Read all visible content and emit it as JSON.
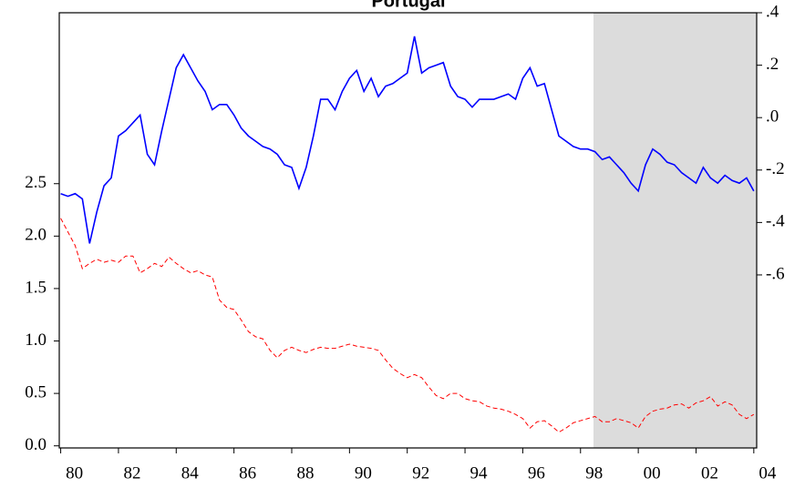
{
  "chart_data": {
    "type": "line",
    "title": "Portugal",
    "x": [
      1980,
      1980.25,
      1980.5,
      1980.75,
      1981,
      1981.25,
      1981.5,
      1981.75,
      1982,
      1982.25,
      1982.5,
      1982.75,
      1983,
      1983.25,
      1983.5,
      1983.75,
      1984,
      1984.25,
      1984.5,
      1984.75,
      1985,
      1985.25,
      1985.5,
      1985.75,
      1986,
      1986.25,
      1986.5,
      1986.75,
      1987,
      1987.25,
      1987.5,
      1987.75,
      1988,
      1988.25,
      1988.5,
      1988.75,
      1989,
      1989.25,
      1989.5,
      1989.75,
      1990,
      1990.25,
      1990.5,
      1990.75,
      1991,
      1991.25,
      1991.5,
      1991.75,
      1992,
      1992.25,
      1992.5,
      1992.75,
      1993,
      1993.25,
      1993.5,
      1993.75,
      1994,
      1994.25,
      1994.5,
      1994.75,
      1995,
      1995.25,
      1995.5,
      1995.75,
      1996,
      1996.25,
      1996.5,
      1996.75,
      1997,
      1997.25,
      1997.5,
      1997.75,
      1998,
      1998.25,
      1998.5,
      1998.75,
      1999,
      1999.25,
      1999.5,
      1999.75,
      2000,
      2000.25,
      2000.5,
      2000.75,
      2001,
      2001.25,
      2001.5,
      2001.75,
      2002,
      2002.25,
      2002.5,
      2002.75,
      2003,
      2003.25,
      2003.5,
      2003.75,
      2004
    ],
    "series": [
      {
        "color": "#0000ff",
        "axis": "y2",
        "line_style": "solid",
        "values": [
          -0.29,
          -0.3,
          -0.29,
          -0.31,
          -0.48,
          -0.36,
          -0.26,
          -0.23,
          -0.07,
          -0.05,
          -0.02,
          0.01,
          -0.14,
          -0.18,
          -0.05,
          0.07,
          0.19,
          0.24,
          0.19,
          0.14,
          0.1,
          0.03,
          0.05,
          0.05,
          0.01,
          -0.04,
          -0.07,
          -0.09,
          -0.11,
          -0.12,
          -0.14,
          -0.18,
          -0.19,
          -0.27,
          -0.19,
          -0.07,
          0.07,
          0.07,
          0.03,
          0.1,
          0.15,
          0.18,
          0.1,
          0.15,
          0.08,
          0.12,
          0.13,
          0.15,
          0.17,
          0.31,
          0.17,
          0.19,
          0.2,
          0.21,
          0.12,
          0.08,
          0.07,
          0.04,
          0.07,
          0.07,
          0.07,
          0.08,
          0.09,
          0.07,
          0.15,
          0.19,
          0.12,
          0.13,
          0.03,
          -0.07,
          -0.09,
          -0.11,
          -0.12,
          -0.12,
          -0.13,
          -0.16,
          -0.15,
          -0.18,
          -0.21,
          -0.25,
          -0.28,
          -0.18,
          -0.12,
          -0.14,
          -0.17,
          -0.18,
          -0.21,
          -0.23,
          -0.25,
          -0.19,
          -0.23,
          -0.25,
          -0.22,
          -0.24,
          -0.25,
          -0.23,
          -0.28
        ]
      },
      {
        "color": "#ff0000",
        "axis": "y",
        "line_style": "dashed",
        "values": [
          2.17,
          2.04,
          1.91,
          1.69,
          1.74,
          1.78,
          1.75,
          1.77,
          1.75,
          1.81,
          1.81,
          1.65,
          1.69,
          1.74,
          1.71,
          1.8,
          1.74,
          1.69,
          1.65,
          1.67,
          1.63,
          1.61,
          1.39,
          1.32,
          1.3,
          1.2,
          1.09,
          1.04,
          1.02,
          0.91,
          0.84,
          0.91,
          0.94,
          0.91,
          0.89,
          0.92,
          0.94,
          0.93,
          0.93,
          0.95,
          0.97,
          0.95,
          0.94,
          0.93,
          0.91,
          0.82,
          0.74,
          0.69,
          0.65,
          0.68,
          0.65,
          0.56,
          0.48,
          0.45,
          0.5,
          0.5,
          0.45,
          0.43,
          0.42,
          0.38,
          0.36,
          0.35,
          0.33,
          0.3,
          0.26,
          0.17,
          0.23,
          0.24,
          0.19,
          0.13,
          0.17,
          0.22,
          0.24,
          0.26,
          0.28,
          0.23,
          0.23,
          0.26,
          0.24,
          0.22,
          0.17,
          0.28,
          0.33,
          0.35,
          0.36,
          0.39,
          0.4,
          0.36,
          0.41,
          0.43,
          0.47,
          0.38,
          0.42,
          0.39,
          0.3,
          0.26,
          0.3
        ]
      }
    ],
    "xlim": [
      1979.95,
      2004.1
    ],
    "xticks": [
      {
        "value": 1980,
        "label": "80"
      },
      {
        "value": 1982,
        "label": "82"
      },
      {
        "value": 1984,
        "label": "84"
      },
      {
        "value": 1986,
        "label": "86"
      },
      {
        "value": 1988,
        "label": "88"
      },
      {
        "value": 1990,
        "label": "90"
      },
      {
        "value": 1992,
        "label": "92"
      },
      {
        "value": 1994,
        "label": "94"
      },
      {
        "value": 1996,
        "label": "96"
      },
      {
        "value": 1998,
        "label": "98"
      },
      {
        "value": 2000,
        "label": "00"
      },
      {
        "value": 2002,
        "label": "02"
      },
      {
        "value": 2004,
        "label": "04"
      }
    ],
    "ylim": [
      -0.02,
      4.13
    ],
    "yticks": [
      {
        "value": 0,
        "label": "0.0"
      },
      0.5,
      {
        "value": 1,
        "label": "1.0"
      },
      1.5,
      {
        "value": 2,
        "label": "2.0"
      },
      2.5
    ],
    "y2lim": [
      -1.26,
      0.4
    ],
    "y2ticks": [
      {
        "value": 0.4,
        "label": ".4"
      },
      {
        "value": 0.2,
        "label": ".2"
      },
      {
        "value": 0,
        "label": ".0"
      },
      {
        "value": -0.2,
        "label": "-.2"
      },
      {
        "value": -0.4,
        "label": "-.4"
      },
      {
        "value": -0.6,
        "label": "-.6"
      }
    ],
    "shaded_region": [
      1998.45,
      2004.1
    ],
    "shade_color": "#dcdcdc"
  }
}
